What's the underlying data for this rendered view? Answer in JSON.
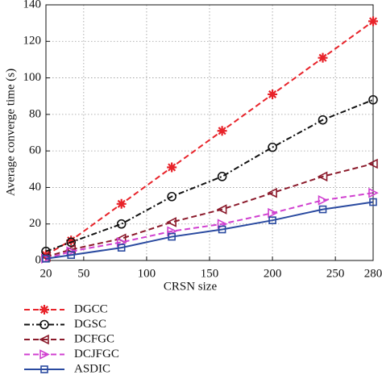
{
  "chart_data": {
    "type": "line",
    "x_label": "CRSN size",
    "y_label": "Average converge time (s)",
    "x": [
      20,
      40,
      80,
      120,
      160,
      200,
      240,
      280
    ],
    "xlim": [
      20,
      280
    ],
    "xticks": [
      20,
      50,
      100,
      150,
      200,
      250,
      280
    ],
    "ylim": [
      0,
      140
    ],
    "yticks": [
      0,
      20,
      40,
      60,
      80,
      100,
      120,
      140
    ],
    "grid": true,
    "series": [
      {
        "name": "DGCC",
        "color": "#e8232a",
        "dash": "dashed",
        "marker": "star",
        "values": [
          3,
          11,
          31,
          51,
          71,
          91,
          111,
          131
        ]
      },
      {
        "name": "DGSC",
        "color": "#111111",
        "dash": "dashdot",
        "marker": "circle",
        "values": [
          5,
          10,
          20,
          35,
          46,
          62,
          77,
          88
        ]
      },
      {
        "name": "DCFGC",
        "color": "#8b1a2b",
        "dash": "dashed",
        "marker": "triangle-left",
        "values": [
          2,
          6,
          12,
          21,
          28,
          37,
          46,
          53
        ]
      },
      {
        "name": "DCJFGC",
        "color": "#d040d0",
        "dash": "dashed",
        "marker": "triangle-right",
        "values": [
          1,
          5,
          10,
          16,
          20,
          26,
          33,
          37
        ]
      },
      {
        "name": "ASDIC",
        "color": "#2a4aa0",
        "dash": "solid",
        "marker": "square",
        "values": [
          1,
          3,
          7,
          13,
          17,
          22,
          28,
          32
        ]
      }
    ]
  }
}
